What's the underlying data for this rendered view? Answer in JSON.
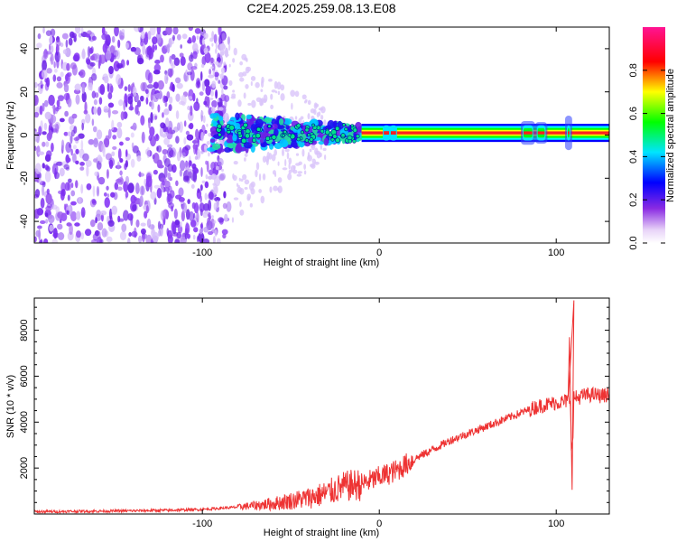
{
  "title": "C2E4.2025.259.08.13.E08",
  "chart_data": [
    {
      "type": "heatmap",
      "name": "spectrogram",
      "xlabel": "Height of straight line (km)",
      "ylabel": "Frequency (Hz)",
      "xlim": [
        -195,
        130
      ],
      "ylim": [
        -50,
        50
      ],
      "xticks": [
        -100,
        0,
        100
      ],
      "xtick_labels": [
        "-100",
        "0",
        "100"
      ],
      "yticks": [
        -40,
        -20,
        0,
        20,
        40
      ],
      "ytick_labels": [
        "-40",
        "-20",
        "0",
        "20",
        "40"
      ],
      "colorbar": {
        "label": "Normalized spectral amplitude",
        "range": [
          0,
          1
        ],
        "ticks": [
          0.0,
          0.2,
          0.4,
          0.6,
          0.8
        ],
        "tick_labels": [
          "0.0",
          "0.2",
          "0.4",
          "0.6",
          "0.8"
        ],
        "colors": [
          "#ffffff",
          "#e6cff8",
          "#8a2be2",
          "#0000ff",
          "#00ffff",
          "#00ff00",
          "#ffff00",
          "#ff0000",
          "#ff1493"
        ]
      },
      "features": [
        {
          "description": "scattered noise",
          "x_range": [
            -195,
            -95
          ],
          "y_range": [
            -50,
            50
          ],
          "amplitude": 0.05
        },
        {
          "description": "transition band",
          "x_range": [
            -95,
            -10
          ],
          "y_range": [
            -10,
            10
          ],
          "amplitude": 0.3
        },
        {
          "description": "carrier line",
          "x_range": [
            -10,
            130
          ],
          "y_center": 1,
          "amplitude": 0.95
        }
      ]
    },
    {
      "type": "line",
      "name": "snr",
      "xlabel": "Height of straight line (km)",
      "ylabel": "SNR (10 * v/v)",
      "xlim": [
        -195,
        130
      ],
      "ylim": [
        0,
        9400
      ],
      "xticks": [
        -100,
        0,
        100
      ],
      "xtick_labels": [
        "-100",
        "0",
        "100"
      ],
      "yticks": [
        2000,
        4000,
        6000,
        8000
      ],
      "ytick_labels": [
        "2000",
        "4000",
        "6000",
        "8000"
      ],
      "series": [
        {
          "name": "SNR",
          "color": "#ee3333",
          "x": [
            -195,
            -150,
            -120,
            -100,
            -80,
            -60,
            -40,
            -30,
            -20,
            -10,
            0,
            10,
            20,
            30,
            40,
            50,
            60,
            70,
            80,
            90,
            100,
            105,
            108,
            109,
            110,
            112,
            115,
            120,
            125,
            130
          ],
          "y": [
            100,
            130,
            160,
            200,
            300,
            450,
            700,
            900,
            1200,
            1300,
            1600,
            1900,
            2400,
            2800,
            3200,
            3500,
            3800,
            4100,
            4400,
            4700,
            4850,
            4900,
            5000,
            1200,
            5100,
            5050,
            5150,
            5200,
            5150,
            5200
          ]
        }
      ],
      "spikes": [
        {
          "x": 107.5,
          "y": 7700
        },
        {
          "x": 109.0,
          "y": 1050
        },
        {
          "x": 110.0,
          "y": 9300
        }
      ]
    }
  ]
}
